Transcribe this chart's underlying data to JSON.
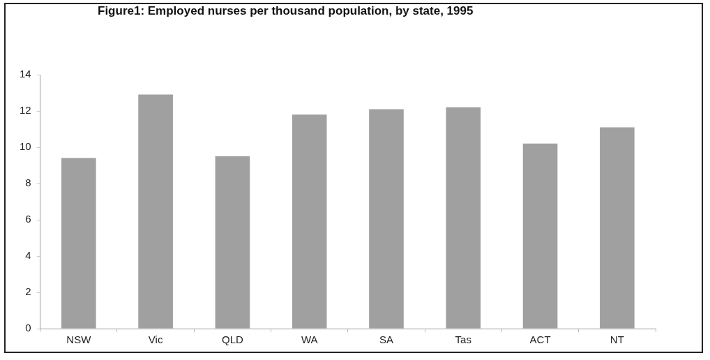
{
  "chart_data": {
    "type": "bar",
    "title": "Figure1: Employed nurses per thousand population, by state, 1995",
    "categories": [
      "NSW",
      "Vic",
      "QLD",
      "WA",
      "SA",
      "Tas",
      "ACT",
      "NT"
    ],
    "values": [
      9.4,
      12.9,
      9.5,
      11.8,
      12.1,
      12.2,
      10.2,
      11.1
    ],
    "color": "#a0a0a0",
    "ylim": [
      0,
      14
    ],
    "yticks": [
      0,
      2,
      4,
      6,
      8,
      10,
      12,
      14
    ],
    "grid": false,
    "legend": false
  }
}
